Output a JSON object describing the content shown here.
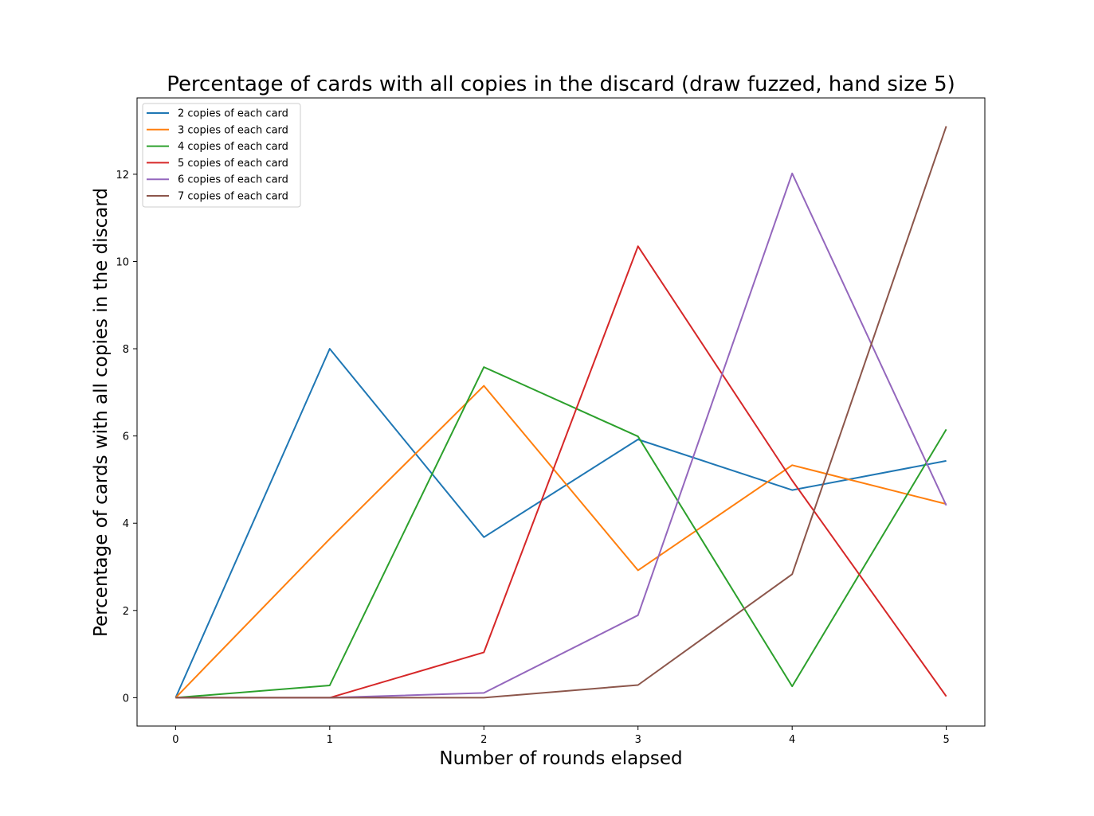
{
  "chart_data": {
    "type": "line",
    "title": "Percentage of cards with all copies in the discard (draw fuzzed, hand size 5)",
    "xlabel": "Number of rounds elapsed",
    "ylabel": "Percentage of cards with all copies in the discard",
    "x": [
      0,
      1,
      2,
      3,
      4,
      5
    ],
    "xlim": [
      -0.25,
      5.25
    ],
    "ylim": [
      -0.65,
      13.75
    ],
    "xticks": [
      "0",
      "1",
      "2",
      "3",
      "4",
      "5"
    ],
    "yticks": [
      "0",
      "2",
      "4",
      "6",
      "8",
      "10",
      "12"
    ],
    "legend_position": "upper-left",
    "grid": false,
    "series": [
      {
        "name": "2 copies of each card",
        "color": "#1f77b4",
        "values": [
          0,
          8.0,
          3.68,
          5.92,
          4.76,
          5.43
        ]
      },
      {
        "name": "3 copies of each card",
        "color": "#ff7f0e",
        "values": [
          0,
          3.64,
          7.15,
          2.92,
          5.33,
          4.44
        ]
      },
      {
        "name": "4 copies of each card",
        "color": "#2ca02c",
        "values": [
          0,
          0.28,
          7.58,
          5.99,
          0.26,
          6.15
        ]
      },
      {
        "name": "5 copies of each card",
        "color": "#d62728",
        "values": [
          0,
          0.0,
          1.04,
          10.35,
          4.98,
          0.03
        ]
      },
      {
        "name": "6 copies of each card",
        "color": "#9467bd",
        "values": [
          0,
          0.0,
          0.11,
          1.89,
          12.02,
          4.41
        ]
      },
      {
        "name": "7 copies of each card",
        "color": "#8c564b",
        "values": [
          0,
          0.0,
          0.0,
          0.29,
          2.83,
          13.1
        ]
      }
    ]
  }
}
